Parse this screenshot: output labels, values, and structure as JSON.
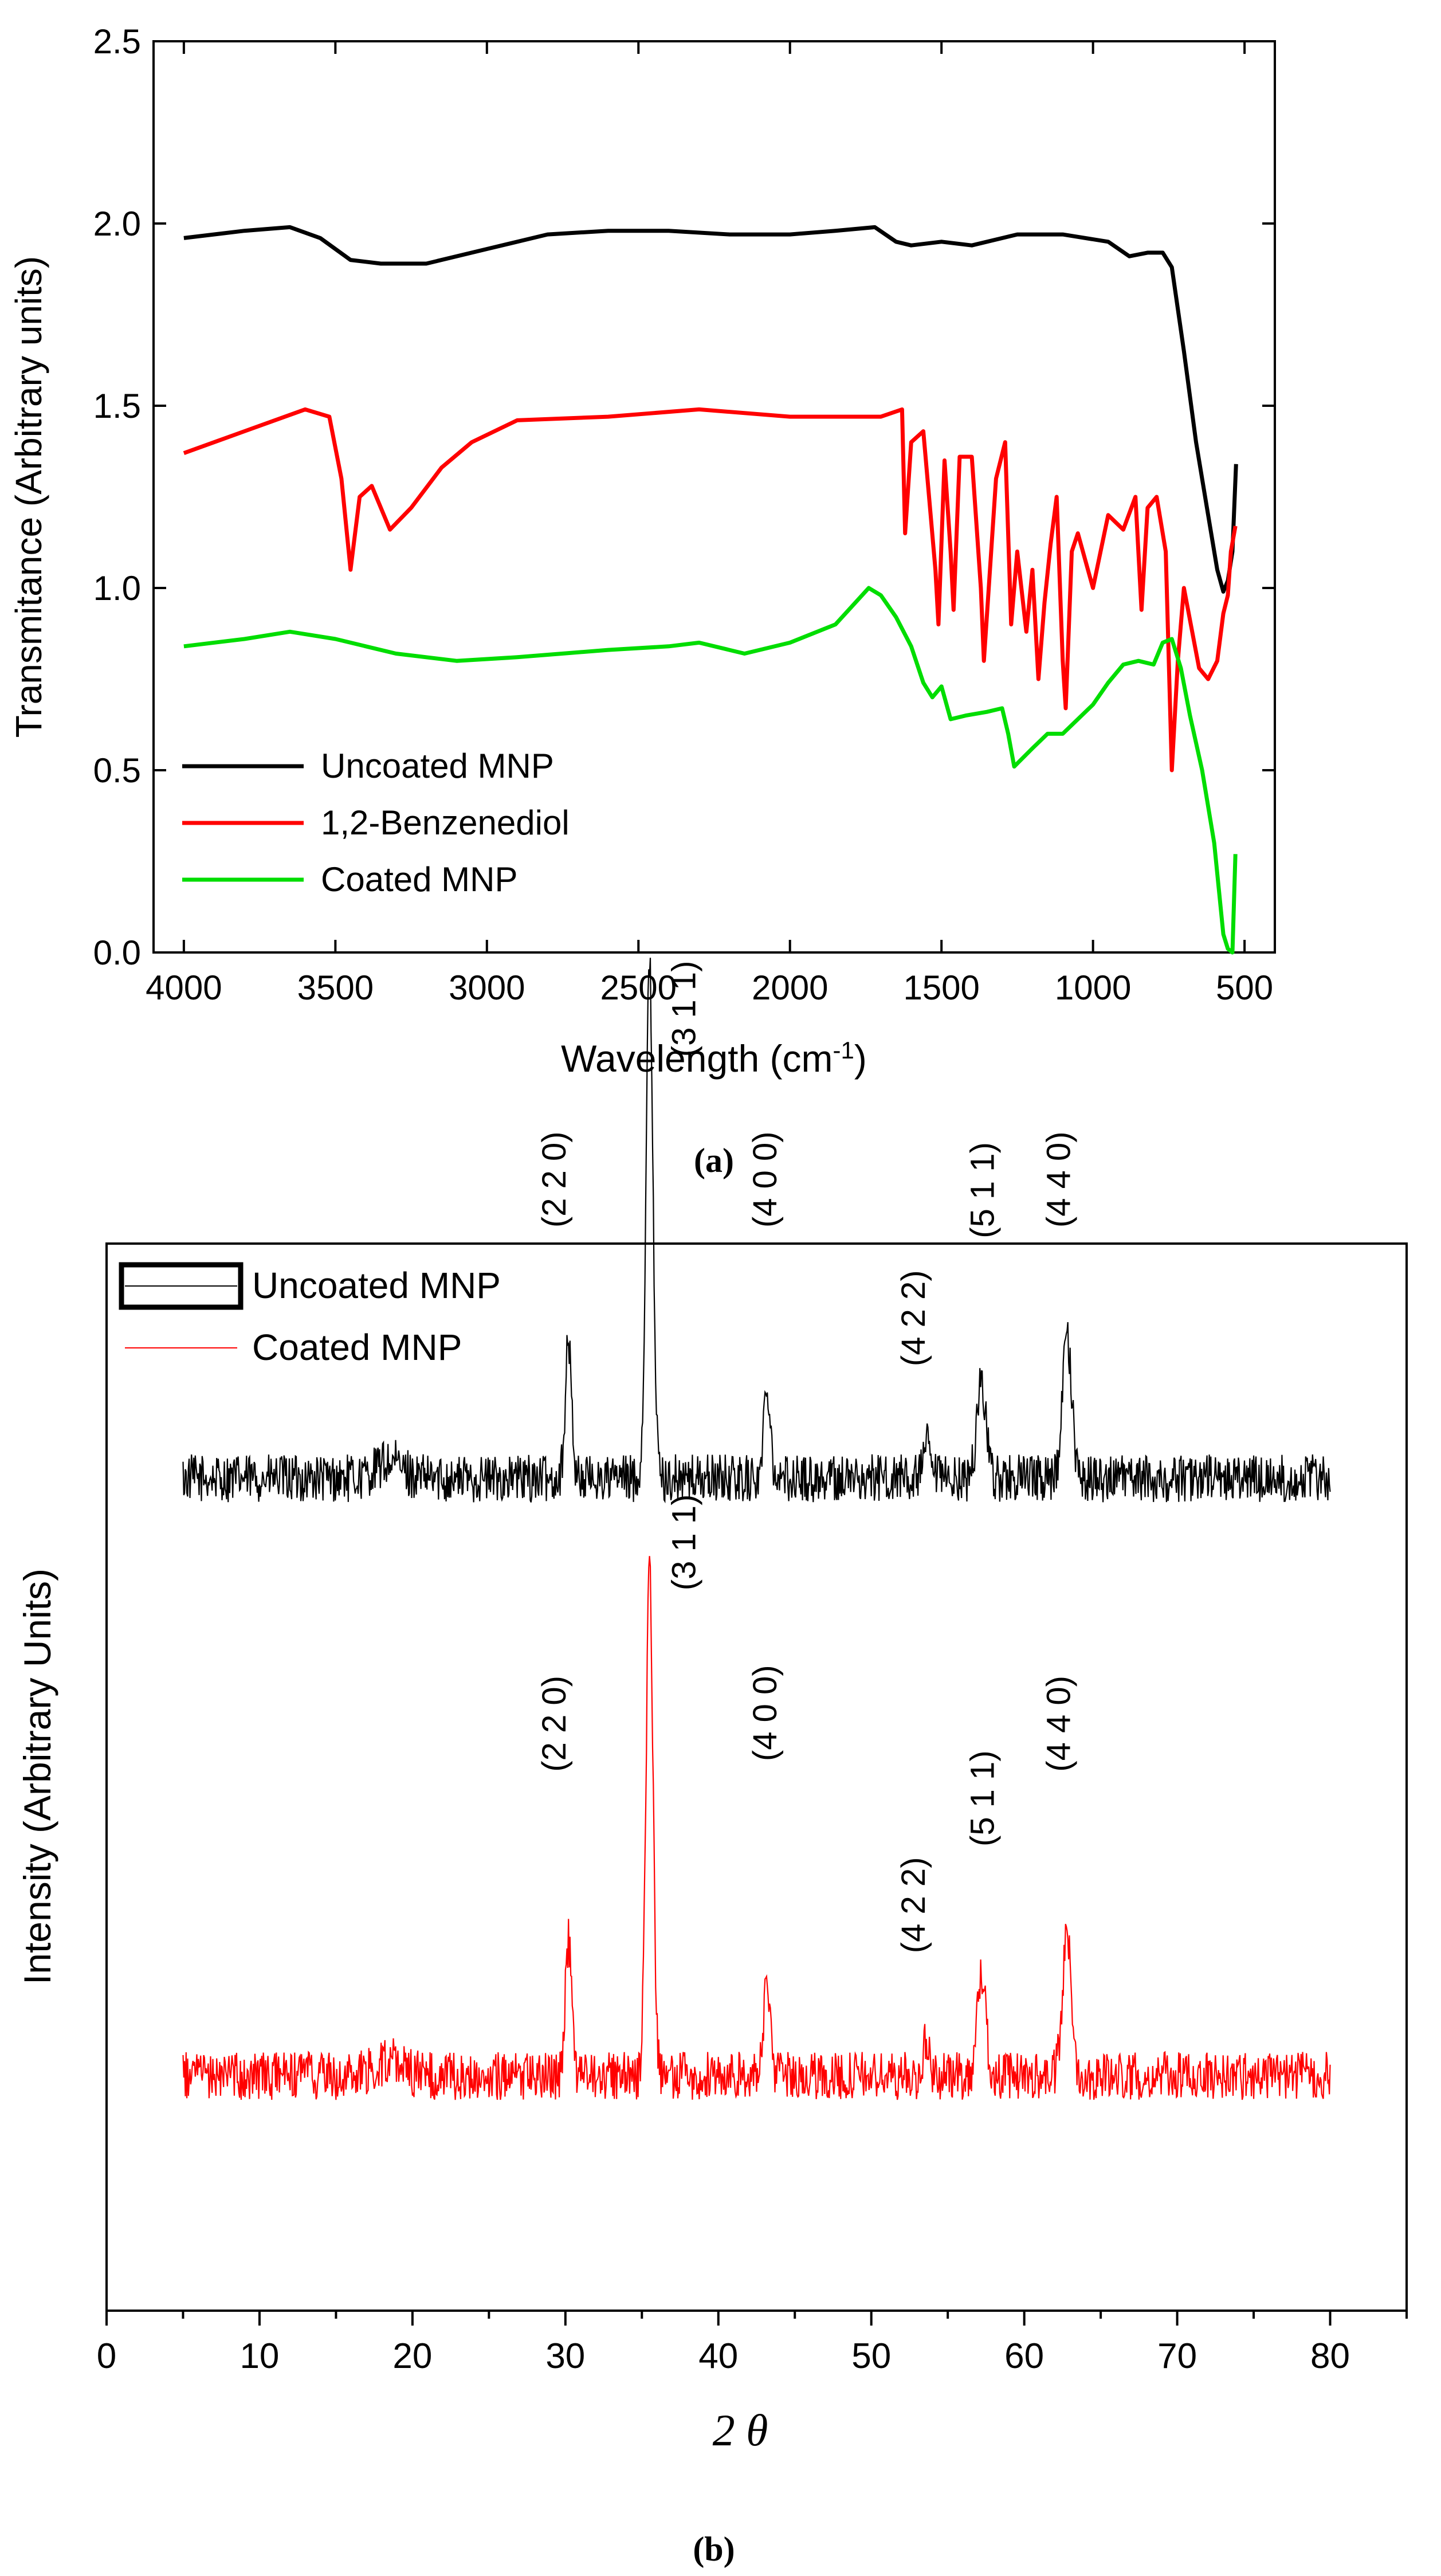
{
  "chart_data": [
    {
      "panel": "(a)",
      "type": "line",
      "xlabel": "Wavelength (cm",
      "xlabel_sup": "-1",
      "xlabel_close": ")",
      "ylabel": "Transmitance (Arbitrary units)",
      "xlim": [
        4100,
        400
      ],
      "ylim": [
        0,
        2.5
      ],
      "x_ticks": [
        "4000",
        "3500",
        "3000",
        "2500",
        "2000",
        "1500",
        "1000",
        "500"
      ],
      "y_ticks": [
        "0.0",
        "0.5",
        "1.0",
        "1.5",
        "2.0",
        "2.5"
      ],
      "legend_position": "bottom-left",
      "series": [
        {
          "name": "Uncoated MNP",
          "color": "#000000",
          "points": [
            [
              4000,
              1.96
            ],
            [
              3800,
              1.98
            ],
            [
              3650,
              1.99
            ],
            [
              3550,
              1.96
            ],
            [
              3450,
              1.9
            ],
            [
              3350,
              1.89
            ],
            [
              3200,
              1.89
            ],
            [
              3000,
              1.93
            ],
            [
              2800,
              1.97
            ],
            [
              2600,
              1.98
            ],
            [
              2400,
              1.98
            ],
            [
              2200,
              1.97
            ],
            [
              2000,
              1.97
            ],
            [
              1850,
              1.98
            ],
            [
              1720,
              1.99
            ],
            [
              1650,
              1.95
            ],
            [
              1600,
              1.94
            ],
            [
              1500,
              1.95
            ],
            [
              1400,
              1.94
            ],
            [
              1250,
              1.97
            ],
            [
              1100,
              1.97
            ],
            [
              950,
              1.95
            ],
            [
              880,
              1.91
            ],
            [
              820,
              1.92
            ],
            [
              770,
              1.92
            ],
            [
              740,
              1.88
            ],
            [
              700,
              1.65
            ],
            [
              660,
              1.4
            ],
            [
              620,
              1.2
            ],
            [
              590,
              1.05
            ],
            [
              570,
              0.99
            ],
            [
              555,
              1.02
            ],
            [
              540,
              1.1
            ],
            [
              528,
              1.34
            ]
          ]
        },
        {
          "name": "1,2-Benzenediol",
          "color": "#ff0000",
          "points": [
            [
              4000,
              1.37
            ],
            [
              3800,
              1.43
            ],
            [
              3600,
              1.49
            ],
            [
              3520,
              1.47
            ],
            [
              3480,
              1.3
            ],
            [
              3450,
              1.05
            ],
            [
              3420,
              1.25
            ],
            [
              3380,
              1.28
            ],
            [
              3320,
              1.16
            ],
            [
              3250,
              1.22
            ],
            [
              3150,
              1.33
            ],
            [
              3050,
              1.4
            ],
            [
              2900,
              1.46
            ],
            [
              2600,
              1.47
            ],
            [
              2300,
              1.49
            ],
            [
              2000,
              1.47
            ],
            [
              1700,
              1.47
            ],
            [
              1630,
              1.49
            ],
            [
              1620,
              1.15
            ],
            [
              1600,
              1.4
            ],
            [
              1560,
              1.43
            ],
            [
              1520,
              1.05
            ],
            [
              1510,
              0.9
            ],
            [
              1490,
              1.35
            ],
            [
              1470,
              1.1
            ],
            [
              1460,
              0.94
            ],
            [
              1440,
              1.36
            ],
            [
              1400,
              1.36
            ],
            [
              1370,
              1.0
            ],
            [
              1360,
              0.8
            ],
            [
              1320,
              1.3
            ],
            [
              1290,
              1.4
            ],
            [
              1270,
              0.9
            ],
            [
              1250,
              1.1
            ],
            [
              1220,
              0.88
            ],
            [
              1200,
              1.05
            ],
            [
              1180,
              0.75
            ],
            [
              1160,
              0.96
            ],
            [
              1140,
              1.12
            ],
            [
              1120,
              1.25
            ],
            [
              1100,
              0.8
            ],
            [
              1090,
              0.67
            ],
            [
              1070,
              1.1
            ],
            [
              1050,
              1.15
            ],
            [
              1000,
              1.0
            ],
            [
              950,
              1.2
            ],
            [
              900,
              1.16
            ],
            [
              860,
              1.25
            ],
            [
              840,
              0.94
            ],
            [
              820,
              1.22
            ],
            [
              790,
              1.25
            ],
            [
              760,
              1.1
            ],
            [
              740,
              0.5
            ],
            [
              720,
              0.8
            ],
            [
              700,
              1.0
            ],
            [
              650,
              0.78
            ],
            [
              620,
              0.75
            ],
            [
              590,
              0.8
            ],
            [
              570,
              0.93
            ],
            [
              555,
              0.98
            ],
            [
              545,
              1.1
            ],
            [
              530,
              1.17
            ]
          ]
        },
        {
          "name": "Coated MNP",
          "color": "#00dd00",
          "points": [
            [
              4000,
              0.84
            ],
            [
              3800,
              0.86
            ],
            [
              3650,
              0.88
            ],
            [
              3500,
              0.86
            ],
            [
              3300,
              0.82
            ],
            [
              3100,
              0.8
            ],
            [
              2900,
              0.81
            ],
            [
              2600,
              0.83
            ],
            [
              2400,
              0.84
            ],
            [
              2300,
              0.85
            ],
            [
              2150,
              0.82
            ],
            [
              2000,
              0.85
            ],
            [
              1850,
              0.9
            ],
            [
              1740,
              1.0
            ],
            [
              1700,
              0.98
            ],
            [
              1650,
              0.92
            ],
            [
              1600,
              0.84
            ],
            [
              1560,
              0.74
            ],
            [
              1530,
              0.7
            ],
            [
              1500,
              0.73
            ],
            [
              1470,
              0.64
            ],
            [
              1420,
              0.65
            ],
            [
              1350,
              0.66
            ],
            [
              1300,
              0.67
            ],
            [
              1280,
              0.6
            ],
            [
              1260,
              0.51
            ],
            [
              1200,
              0.56
            ],
            [
              1150,
              0.6
            ],
            [
              1100,
              0.6
            ],
            [
              1000,
              0.68
            ],
            [
              950,
              0.74
            ],
            [
              900,
              0.79
            ],
            [
              850,
              0.8
            ],
            [
              800,
              0.79
            ],
            [
              770,
              0.85
            ],
            [
              740,
              0.86
            ],
            [
              710,
              0.78
            ],
            [
              680,
              0.65
            ],
            [
              640,
              0.5
            ],
            [
              600,
              0.3
            ],
            [
              570,
              0.05
            ],
            [
              555,
              0.01
            ],
            [
              540,
              0.0
            ],
            [
              530,
              0.27
            ]
          ]
        }
      ]
    },
    {
      "panel": "(b)",
      "type": "line",
      "xlabel": "2 θ",
      "ylabel": "Intensity (Arbitrary Units)",
      "xlim": [
        0,
        85
      ],
      "x_ticks": [
        "0",
        "10",
        "20",
        "30",
        "40",
        "50",
        "60",
        "70",
        "80"
      ],
      "legend_position": "top-left",
      "series": [
        {
          "name": "Uncoated MNP",
          "color": "#000000",
          "baseline": 0.78,
          "noise": 0.045
        },
        {
          "name": "Coated MNP",
          "color": "#ff0000",
          "baseline": 0.22,
          "noise": 0.045
        }
      ],
      "peaks": [
        {
          "x": 30.2,
          "height": 0.125,
          "width": 0.3
        },
        {
          "x": 35.5,
          "height": 0.48,
          "width": 0.32
        },
        {
          "x": 43.2,
          "height": 0.09,
          "width": 0.3
        },
        {
          "x": 53.6,
          "height": 0.03,
          "width": 0.3
        },
        {
          "x": 57.2,
          "height": 0.095,
          "width": 0.4
        },
        {
          "x": 62.8,
          "height": 0.13,
          "width": 0.42
        }
      ],
      "peak_labels": {
        "uncoated": [
          {
            "text": "(2 2 0)",
            "x": 30.0,
            "y": 1.06
          },
          {
            "text": "(3 1 1)",
            "x": 38.5,
            "y": 1.22
          },
          {
            "text": "(4 0 0)",
            "x": 43.8,
            "y": 1.06
          },
          {
            "text": "(4 2 2)",
            "x": 53.5,
            "y": 0.93
          },
          {
            "text": "(5 1 1)",
            "x": 58.0,
            "y": 1.05
          },
          {
            "text": "(4 4 0)",
            "x": 63.0,
            "y": 1.06
          }
        ],
        "coated": [
          {
            "text": "(2 2 0)",
            "x": 30.0,
            "y": 0.55
          },
          {
            "text": "(3 1 1)",
            "x": 38.5,
            "y": 0.72
          },
          {
            "text": "(4 0 0)",
            "x": 43.8,
            "y": 0.56
          },
          {
            "text": "(4 2 2)",
            "x": 53.5,
            "y": 0.38
          },
          {
            "text": "(5 1 1)",
            "x": 58.0,
            "y": 0.48
          },
          {
            "text": "(4 4 0)",
            "x": 63.0,
            "y": 0.55
          }
        ]
      }
    }
  ],
  "captions": {
    "a": "(a)",
    "b": "(b)"
  }
}
